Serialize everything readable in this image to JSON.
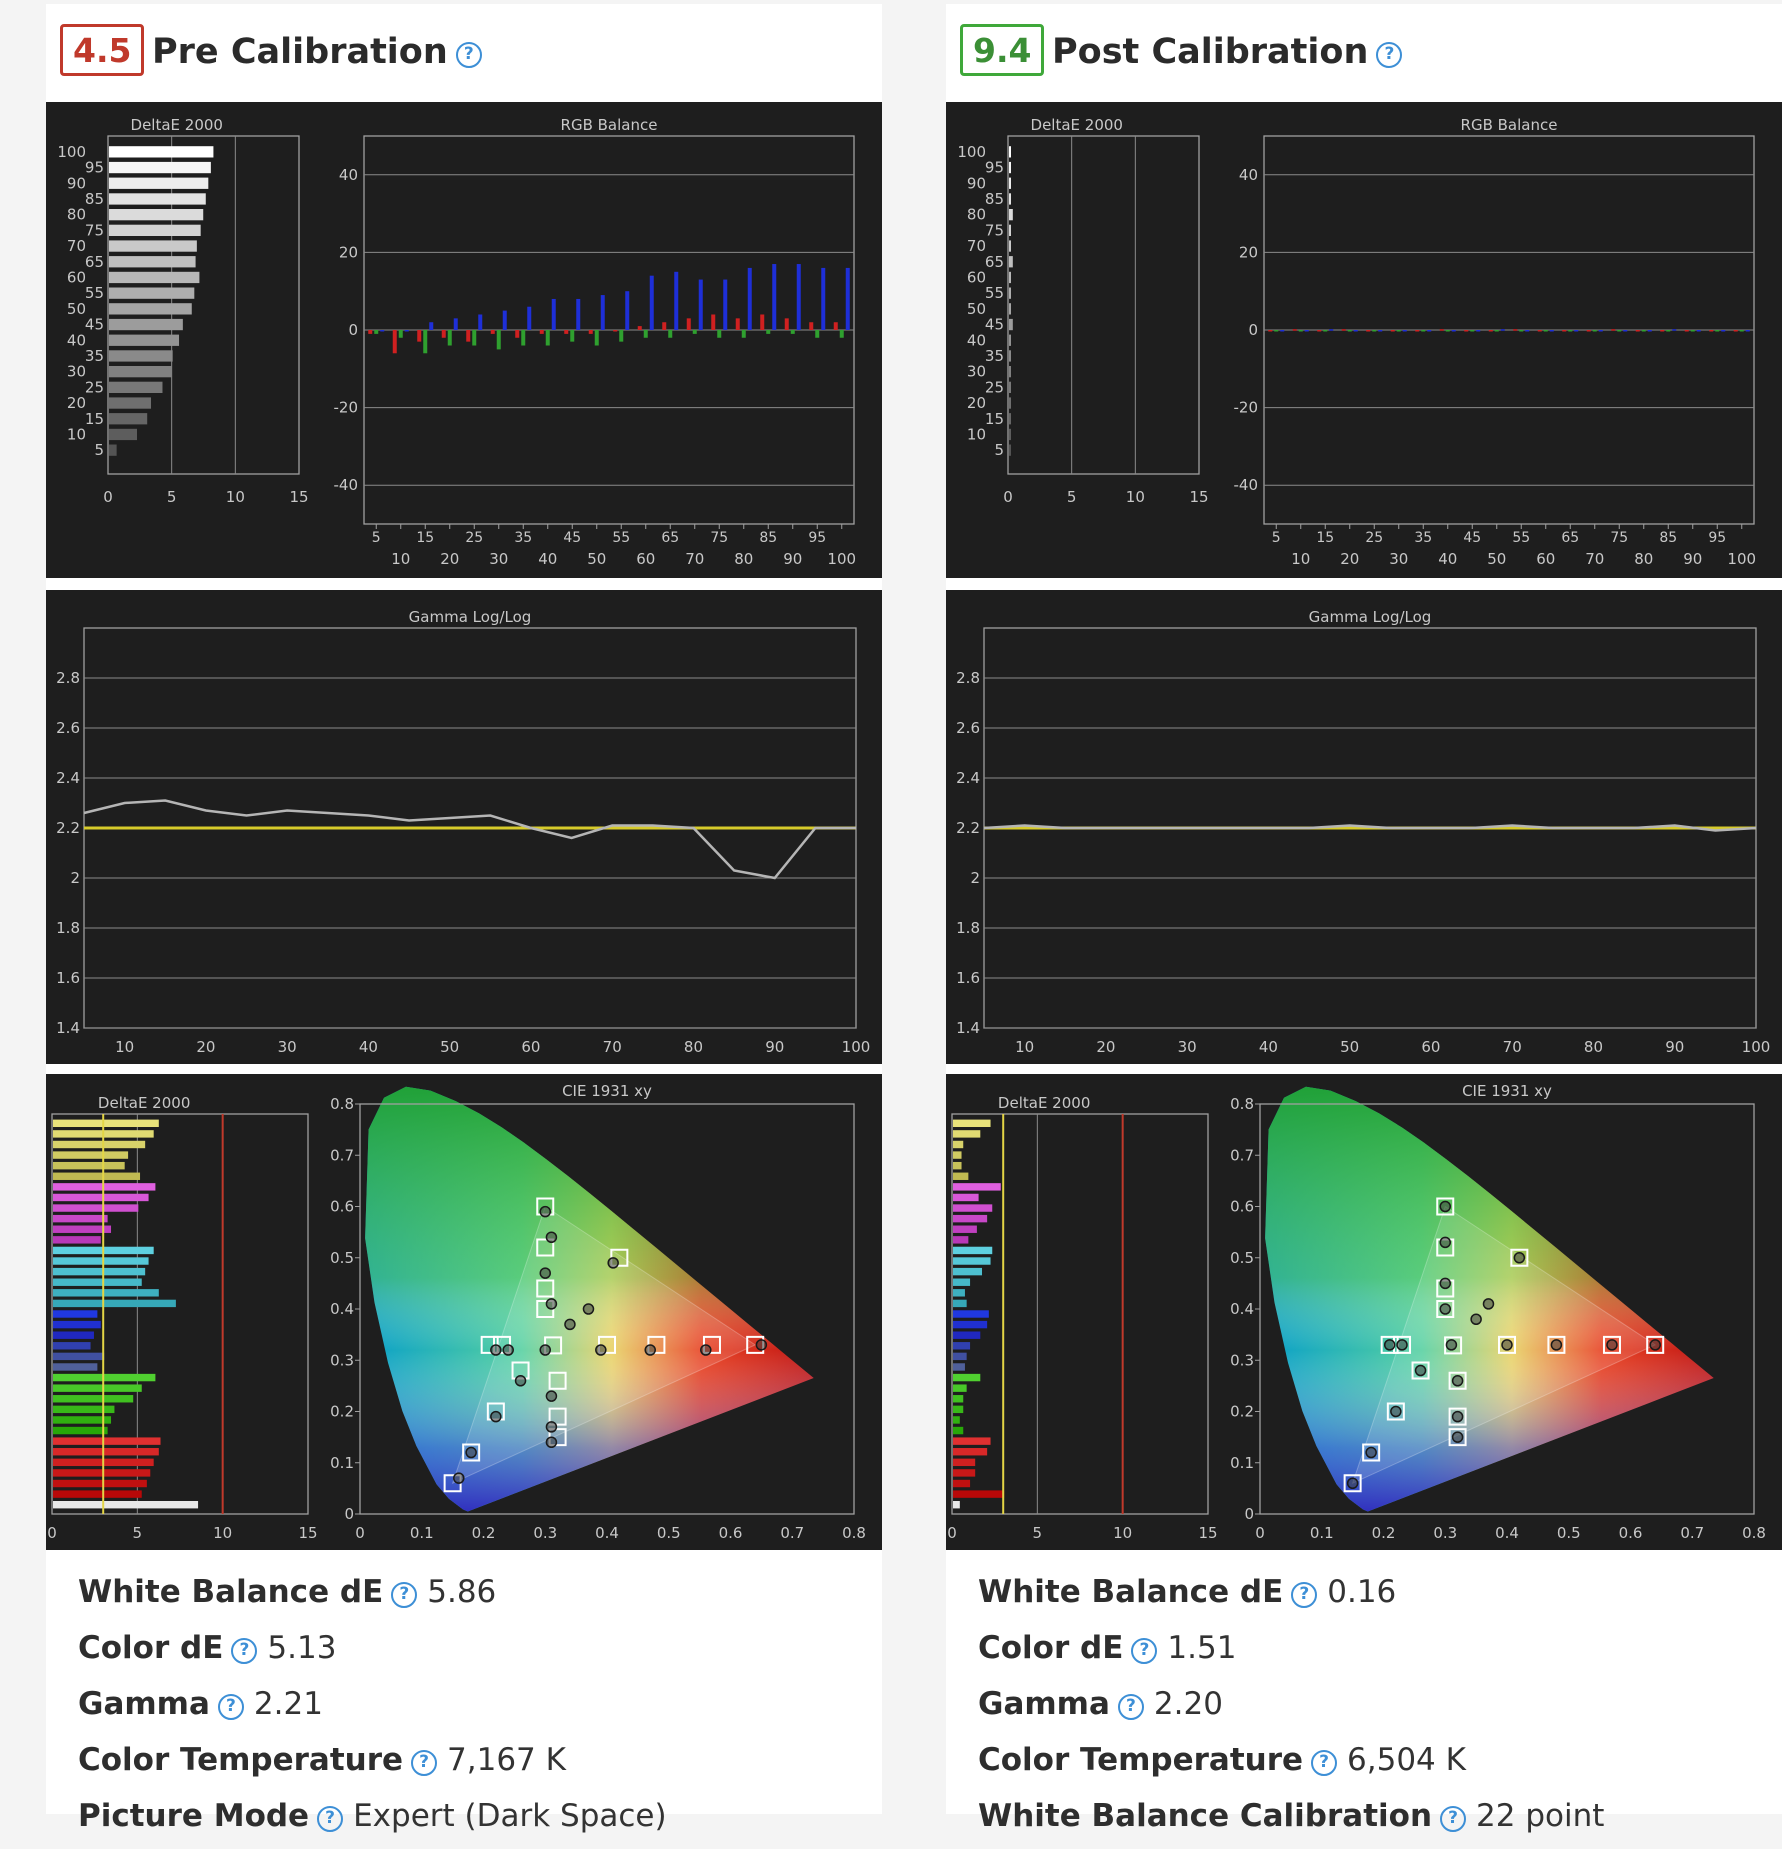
{
  "cards": [
    {
      "score": "4.5",
      "rating": "bad",
      "title": "Pre Calibration",
      "stats": [
        {
          "label": "White Balance dE",
          "value": "5.86"
        },
        {
          "label": "Color dE",
          "value": "5.13"
        },
        {
          "label": "Gamma",
          "value": "2.21"
        },
        {
          "label": "Color Temperature",
          "value": "7,167 K"
        },
        {
          "label": "Picture Mode",
          "value": "Expert (Dark Space)"
        }
      ]
    },
    {
      "score": "9.4",
      "rating": "good",
      "title": "Post Calibration",
      "stats": [
        {
          "label": "White Balance dE",
          "value": "0.16"
        },
        {
          "label": "Color dE",
          "value": "1.51"
        },
        {
          "label": "Gamma",
          "value": "2.20"
        },
        {
          "label": "Color Temperature",
          "value": "6,504 K"
        },
        {
          "label": "White Balance Calibration",
          "value": "22 point"
        }
      ]
    }
  ],
  "help_glyph": "?",
  "chart_data": [
    {
      "id": "pre-grayscale-deltae",
      "type": "bar",
      "orientation": "horizontal",
      "title": "DeltaE 2000",
      "categories": [
        100,
        95,
        90,
        85,
        80,
        75,
        70,
        65,
        60,
        55,
        50,
        45,
        40,
        35,
        30,
        25,
        20,
        15,
        10,
        5
      ],
      "values": [
        8.2,
        8.0,
        7.8,
        7.6,
        7.4,
        7.2,
        6.9,
        6.8,
        7.1,
        6.7,
        6.5,
        5.8,
        5.5,
        5.0,
        4.9,
        4.2,
        3.3,
        3.0,
        2.2,
        0.6
      ],
      "xlim": [
        0,
        15
      ],
      "xticks": [
        0,
        5,
        10,
        15
      ]
    },
    {
      "id": "pre-rgb-balance",
      "type": "bar",
      "title": "RGB Balance",
      "x": [
        5,
        10,
        15,
        20,
        25,
        30,
        35,
        40,
        45,
        50,
        55,
        60,
        65,
        70,
        75,
        80,
        85,
        90,
        95,
        100
      ],
      "x_tick_labels_top": [
        "5",
        "15",
        "25",
        "35",
        "45",
        "55",
        "65",
        "75",
        "85",
        "95"
      ],
      "x_tick_labels_bottom": [
        "10",
        "20",
        "30",
        "40",
        "50",
        "60",
        "70",
        "80",
        "90",
        "100"
      ],
      "ylim": [
        -50,
        50
      ],
      "yticks": [
        40,
        20,
        0,
        -20,
        -40
      ],
      "series": [
        {
          "name": "Red",
          "color": "#d02020",
          "values": [
            -1,
            -6,
            -3,
            -2,
            -3,
            -1,
            -2,
            -1,
            -1,
            -1,
            0,
            1,
            2,
            3,
            4,
            3,
            4,
            3,
            2,
            2
          ]
        },
        {
          "name": "Green",
          "color": "#2fa02f",
          "values": [
            -1,
            -2,
            -6,
            -4,
            -4,
            -5,
            -4,
            -4,
            -3,
            -4,
            -3,
            -2,
            -2,
            -1,
            -2,
            -2,
            -1,
            -1,
            -2,
            -2
          ]
        },
        {
          "name": "Blue",
          "color": "#1e2fd8",
          "values": [
            0,
            0,
            2,
            3,
            4,
            5,
            6,
            8,
            8,
            9,
            10,
            14,
            15,
            13,
            13,
            16,
            17,
            17,
            16,
            16
          ]
        }
      ]
    },
    {
      "id": "pre-gamma",
      "type": "line",
      "title": "Gamma Log/Log",
      "x": [
        5,
        10,
        15,
        20,
        25,
        30,
        35,
        40,
        45,
        50,
        55,
        60,
        65,
        70,
        75,
        80,
        85,
        90,
        95,
        100
      ],
      "target": 2.2,
      "series": [
        {
          "name": "Measured",
          "color": "#b5b5b5",
          "values": [
            2.26,
            2.3,
            2.31,
            2.27,
            2.25,
            2.27,
            2.26,
            2.25,
            2.23,
            2.24,
            2.25,
            2.2,
            2.16,
            2.21,
            2.21,
            2.2,
            2.03,
            2.0,
            2.2,
            2.2
          ]
        }
      ],
      "xlim": [
        5,
        100
      ],
      "xticks": [
        10,
        20,
        30,
        40,
        50,
        60,
        70,
        80,
        90,
        100
      ],
      "ylim": [
        1.4,
        3.0
      ],
      "yticks": [
        2.8,
        2.6,
        2.4,
        2.2,
        2,
        1.8,
        1.6,
        1.4
      ]
    },
    {
      "id": "pre-color-deltae",
      "type": "bar",
      "orientation": "horizontal",
      "title": "DeltaE 2000",
      "bar_colors": [
        "#e8e27a",
        "#e0da72",
        "#d8d26a",
        "#d0ca62",
        "#c8c25a",
        "#c0ba52",
        "#e060e0",
        "#d858d8",
        "#d050d0",
        "#c848c8",
        "#c040c0",
        "#b838b8",
        "#5ed0e0",
        "#56c8d8",
        "#4ec0d0",
        "#46b8c8",
        "#3eb0c0",
        "#36a8b8",
        "#2038e0",
        "#2030d0",
        "#2028c0",
        "#3040b0",
        "#4050a0",
        "#50609a",
        "#50d030",
        "#48c828",
        "#40c020",
        "#38b818",
        "#30b010",
        "#28a808",
        "#e03030",
        "#d82828",
        "#d02020",
        "#c81818",
        "#c01010",
        "#b80808",
        "#e8e8e8"
      ],
      "values": [
        6.2,
        5.9,
        5.4,
        4.4,
        4.2,
        5.1,
        6.0,
        5.6,
        5.0,
        3.2,
        3.4,
        2.8,
        5.9,
        5.6,
        5.4,
        5.2,
        6.2,
        7.2,
        2.6,
        2.8,
        2.4,
        2.2,
        3.0,
        2.6,
        6.0,
        5.2,
        4.7,
        3.6,
        3.4,
        3.2,
        6.3,
        6.2,
        5.9,
        5.7,
        5.5,
        5.2,
        8.5
      ],
      "reference_lines": [
        {
          "value": 3,
          "color": "#e3d545"
        },
        {
          "value": 10,
          "color": "#c0392b"
        }
      ],
      "xlim": [
        0,
        15
      ],
      "xticks": [
        0,
        5,
        10,
        15
      ]
    },
    {
      "id": "pre-cie",
      "type": "scatter",
      "title": "CIE 1931 xy",
      "xlim": [
        0,
        0.8
      ],
      "ylim": [
        0,
        0.8
      ],
      "xticks": [
        0,
        0.1,
        0.2,
        0.3,
        0.4,
        0.5,
        0.6,
        0.7,
        0.8
      ],
      "yticks": [
        0.8,
        0.7,
        0.6,
        0.5,
        0.4,
        0.3,
        0.2,
        0.1,
        0
      ],
      "targets": [
        [
          0.64,
          0.33
        ],
        [
          0.3,
          0.6
        ],
        [
          0.15,
          0.06
        ],
        [
          0.3127,
          0.329
        ],
        [
          0.57,
          0.33
        ],
        [
          0.48,
          0.33
        ],
        [
          0.4,
          0.33
        ],
        [
          0.3,
          0.52
        ],
        [
          0.3,
          0.44
        ],
        [
          0.3,
          0.4
        ],
        [
          0.26,
          0.28
        ],
        [
          0.22,
          0.2
        ],
        [
          0.18,
          0.12
        ],
        [
          0.42,
          0.5
        ],
        [
          0.32,
          0.26
        ],
        [
          0.32,
          0.19
        ],
        [
          0.32,
          0.15
        ],
        [
          0.23,
          0.33
        ],
        [
          0.21,
          0.33
        ]
      ],
      "measured": [
        [
          0.65,
          0.33
        ],
        [
          0.3,
          0.59
        ],
        [
          0.16,
          0.07
        ],
        [
          0.3,
          0.32
        ],
        [
          0.56,
          0.32
        ],
        [
          0.47,
          0.32
        ],
        [
          0.39,
          0.32
        ],
        [
          0.31,
          0.54
        ],
        [
          0.3,
          0.47
        ],
        [
          0.31,
          0.41
        ],
        [
          0.26,
          0.26
        ],
        [
          0.22,
          0.19
        ],
        [
          0.18,
          0.12
        ],
        [
          0.41,
          0.49
        ],
        [
          0.31,
          0.23
        ],
        [
          0.31,
          0.17
        ],
        [
          0.31,
          0.14
        ],
        [
          0.24,
          0.32
        ],
        [
          0.22,
          0.32
        ],
        [
          0.37,
          0.4
        ],
        [
          0.34,
          0.37
        ]
      ]
    },
    {
      "id": "post-grayscale-deltae",
      "type": "bar",
      "orientation": "horizontal",
      "title": "DeltaE 2000",
      "categories": [
        100,
        95,
        90,
        85,
        80,
        75,
        70,
        65,
        60,
        55,
        50,
        45,
        40,
        35,
        30,
        25,
        20,
        15,
        10,
        5
      ],
      "values": [
        0.1,
        0.1,
        0.1,
        0.1,
        0.3,
        0.1,
        0.1,
        0.3,
        0.1,
        0.1,
        0.1,
        0.3,
        0.1,
        0.1,
        0.1,
        0.1,
        0.1,
        0.1,
        0.1,
        0.1
      ],
      "xlim": [
        0,
        15
      ],
      "xticks": [
        0,
        5,
        10,
        15
      ]
    },
    {
      "id": "post-rgb-balance",
      "type": "bar",
      "title": "RGB Balance",
      "x": [
        5,
        10,
        15,
        20,
        25,
        30,
        35,
        40,
        45,
        50,
        55,
        60,
        65,
        70,
        75,
        80,
        85,
        90,
        95,
        100
      ],
      "x_tick_labels_top": [
        "5",
        "15",
        "25",
        "35",
        "45",
        "55",
        "65",
        "75",
        "85",
        "95"
      ],
      "x_tick_labels_bottom": [
        "10",
        "20",
        "30",
        "40",
        "50",
        "60",
        "70",
        "80",
        "90",
        "100"
      ],
      "ylim": [
        -50,
        50
      ],
      "yticks": [
        40,
        20,
        0,
        -20,
        -40
      ],
      "series": [
        {
          "name": "Red",
          "color": "#d02020",
          "values": [
            0,
            0.2,
            0,
            0.2,
            0,
            0,
            0,
            0.2,
            0,
            0,
            0.2,
            0,
            0,
            0,
            0.2,
            0,
            0,
            0,
            0,
            0
          ]
        },
        {
          "name": "Green",
          "color": "#2fa02f",
          "values": [
            0,
            0,
            0,
            0,
            0,
            0,
            0,
            0,
            0,
            0,
            0,
            0,
            0,
            0,
            0,
            0,
            0,
            0,
            0,
            0
          ]
        },
        {
          "name": "Blue",
          "color": "#1e2fd8",
          "values": [
            0,
            0,
            0.2,
            0,
            0,
            0,
            0,
            0,
            0,
            0.2,
            0,
            0,
            0,
            0,
            0,
            0,
            0.2,
            0,
            0,
            0
          ]
        }
      ]
    },
    {
      "id": "post-gamma",
      "type": "line",
      "title": "Gamma Log/Log",
      "x": [
        5,
        10,
        15,
        20,
        25,
        30,
        35,
        40,
        45,
        50,
        55,
        60,
        65,
        70,
        75,
        80,
        85,
        90,
        95,
        100
      ],
      "target": 2.2,
      "series": [
        {
          "name": "Measured",
          "color": "#b5b5b5",
          "values": [
            2.2,
            2.21,
            2.2,
            2.2,
            2.2,
            2.2,
            2.2,
            2.2,
            2.2,
            2.21,
            2.2,
            2.2,
            2.2,
            2.21,
            2.2,
            2.2,
            2.2,
            2.21,
            2.19,
            2.2
          ]
        }
      ],
      "xlim": [
        5,
        100
      ],
      "xticks": [
        10,
        20,
        30,
        40,
        50,
        60,
        70,
        80,
        90,
        100
      ],
      "ylim": [
        1.4,
        3.0
      ],
      "yticks": [
        2.8,
        2.6,
        2.4,
        2.2,
        2,
        1.8,
        1.6,
        1.4
      ]
    },
    {
      "id": "post-color-deltae",
      "type": "bar",
      "orientation": "horizontal",
      "title": "DeltaE 2000",
      "bar_colors": [
        "#e8e27a",
        "#e0da72",
        "#d8d26a",
        "#d0ca62",
        "#c8c25a",
        "#c0ba52",
        "#e060e0",
        "#d858d8",
        "#d050d0",
        "#c848c8",
        "#c040c0",
        "#b838b8",
        "#5ed0e0",
        "#56c8d8",
        "#4ec0d0",
        "#46b8c8",
        "#3eb0c0",
        "#36a8b8",
        "#2038e0",
        "#2030d0",
        "#2028c0",
        "#3040b0",
        "#4050a0",
        "#50609a",
        "#50d030",
        "#48c828",
        "#40c020",
        "#38b818",
        "#30b010",
        "#28a808",
        "#e03030",
        "#d82828",
        "#d02020",
        "#c81818",
        "#c01010",
        "#b80808",
        "#e8e8e8"
      ],
      "values": [
        2.2,
        1.6,
        0.6,
        0.5,
        0.5,
        0.9,
        2.8,
        1.5,
        2.3,
        2.0,
        1.4,
        0.9,
        2.3,
        2.2,
        1.7,
        1.0,
        0.7,
        0.8,
        2.1,
        2.0,
        1.6,
        1.0,
        0.8,
        0.7,
        1.6,
        0.8,
        0.6,
        0.6,
        0.4,
        0.6,
        2.2,
        2.0,
        1.3,
        1.3,
        1.0,
        3.0,
        0.4
      ],
      "reference_lines": [
        {
          "value": 3,
          "color": "#e3d545"
        },
        {
          "value": 10,
          "color": "#c0392b"
        }
      ],
      "xlim": [
        0,
        15
      ],
      "xticks": [
        0,
        5,
        10,
        15
      ]
    },
    {
      "id": "post-cie",
      "type": "scatter",
      "title": "CIE 1931 xy",
      "xlim": [
        0,
        0.8
      ],
      "ylim": [
        0,
        0.8
      ],
      "xticks": [
        0,
        0.1,
        0.2,
        0.3,
        0.4,
        0.5,
        0.6,
        0.7,
        0.8
      ],
      "yticks": [
        0.8,
        0.7,
        0.6,
        0.5,
        0.4,
        0.3,
        0.2,
        0.1,
        0
      ],
      "targets": [
        [
          0.64,
          0.33
        ],
        [
          0.3,
          0.6
        ],
        [
          0.15,
          0.06
        ],
        [
          0.3127,
          0.329
        ],
        [
          0.57,
          0.33
        ],
        [
          0.48,
          0.33
        ],
        [
          0.4,
          0.33
        ],
        [
          0.3,
          0.52
        ],
        [
          0.3,
          0.44
        ],
        [
          0.3,
          0.4
        ],
        [
          0.26,
          0.28
        ],
        [
          0.22,
          0.2
        ],
        [
          0.18,
          0.12
        ],
        [
          0.42,
          0.5
        ],
        [
          0.32,
          0.26
        ],
        [
          0.32,
          0.19
        ],
        [
          0.32,
          0.15
        ],
        [
          0.23,
          0.33
        ],
        [
          0.21,
          0.33
        ]
      ],
      "measured": [
        [
          0.64,
          0.33
        ],
        [
          0.3,
          0.6
        ],
        [
          0.15,
          0.06
        ],
        [
          0.31,
          0.33
        ],
        [
          0.57,
          0.33
        ],
        [
          0.48,
          0.33
        ],
        [
          0.4,
          0.33
        ],
        [
          0.3,
          0.53
        ],
        [
          0.3,
          0.45
        ],
        [
          0.3,
          0.4
        ],
        [
          0.26,
          0.28
        ],
        [
          0.22,
          0.2
        ],
        [
          0.18,
          0.12
        ],
        [
          0.42,
          0.5
        ],
        [
          0.32,
          0.26
        ],
        [
          0.32,
          0.19
        ],
        [
          0.32,
          0.15
        ],
        [
          0.23,
          0.33
        ],
        [
          0.21,
          0.33
        ],
        [
          0.37,
          0.41
        ],
        [
          0.35,
          0.38
        ]
      ]
    }
  ]
}
